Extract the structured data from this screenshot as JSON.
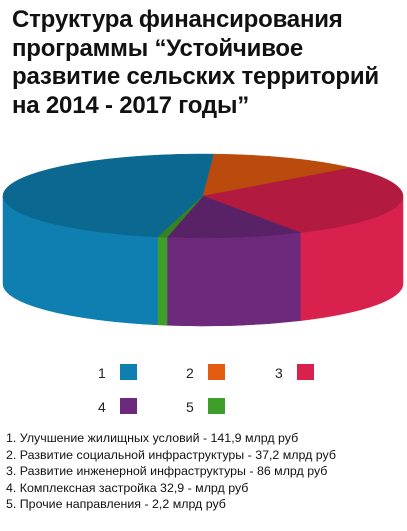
{
  "title": "Структура финансирования программы “Устойчивое развитие сельских территорий на 2014 - 2017 годы”",
  "chart_data": {
    "type": "pie",
    "title": "Структура финансирования программы “Устойчивое развитие сельских территорий на 2014 - 2017 годы”",
    "slices": [
      {
        "label": "1",
        "value": 141.9,
        "color": "#0e7fb0"
      },
      {
        "label": "2",
        "value": 37.2,
        "color": "#e45c0f"
      },
      {
        "label": "3",
        "value": 86,
        "color": "#d9214d"
      },
      {
        "label": "4",
        "value": 32.9,
        "color": "#6d2a7c"
      },
      {
        "label": "5",
        "value": 2.2,
        "color": "#3f9e2a"
      }
    ],
    "legend_placement": "bottom",
    "notes": [
      "1. Улучшение жилищных условий - 141,9 млрд руб",
      "2. Развитие социальной инфраструктуры - 37,2 млрд руб",
      "3. Развитие инженерной инфраструктуры - 86 млрд руб",
      "4. Комплексная застройка 32,9 - млрд руб",
      "5. Прочие направления - 2,2 млрд руб"
    ]
  }
}
